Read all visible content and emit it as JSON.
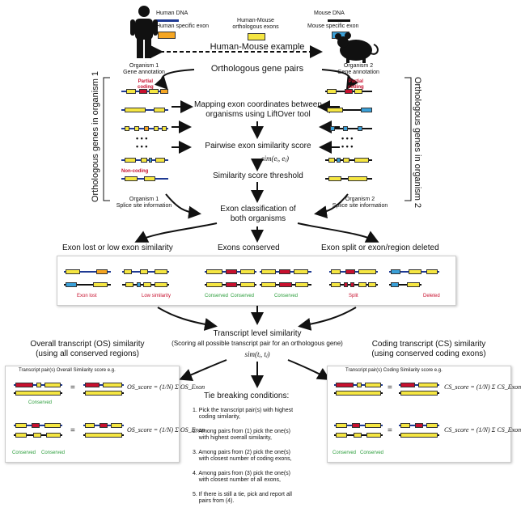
{
  "legend": {
    "human_dna": "Human DNA",
    "human_exon": "Human specific exon",
    "hm_exons": "Human-Mouse\northologous exons",
    "mouse_dna": "Mouse DNA",
    "mouse_exon": "Mouse specific exon",
    "example": "Human-Mouse example"
  },
  "organisms": {
    "org1": "Organism 1\nGene annotation",
    "org2": "Organism 2\nGene annotation",
    "org1_splice": "Organism 1\nSplice site information",
    "org2_splice": "Organism 2\nSplice site information",
    "orth_genes_1": "Orthologous genes in organism 1",
    "orth_genes_2": "Orthologous genes in organism 2"
  },
  "flow": {
    "orth_pairs": "Orthologous gene pairs",
    "mapping": "Mapping exon coordinates between\norganisms using LiftOver tool",
    "pairwise": "Pairwise exon similarity score",
    "sim_ej": "sim(eᵢ, eⱼ)",
    "threshold": "Similarity score threshold",
    "classification": "Exon classification of\nboth organisms"
  },
  "gene_labels": {
    "partial_coding": "Partial\ncoding",
    "non_coding": "Non-coding",
    "dots": "• • •"
  },
  "classes": {
    "lost": "Exon lost or low exon similarity",
    "conserved": "Exons conserved",
    "split": "Exon split or exon/region deleted",
    "exon_lost": "Exon lost",
    "low_similarity": "Low similarity",
    "conserved_lbl": "Conserved",
    "split_lbl": "Split",
    "deleted": "Deleted"
  },
  "transcript": {
    "title": "Transcript level similarity",
    "sub": "(Scoring all possible transcript pair for an orthologous gene)",
    "sim_t": "sim(tᵢ, tⱼ)",
    "os_title": "Overall transcript (OS) similarity\n(using all conserved regions)",
    "cs_title": "Coding transcript (CS) similarity\n(using conserved coding exons)",
    "os_panel": "Transcript pair(s) Overall Similarity score e.g.",
    "cs_panel": "Transcript pair(s) Coding Similarity score e.g.",
    "os_formula": "OS_score = (1/N) Σ OS_Exon",
    "cs_formula": "CS_score = (1/N) Σ CS_Exon",
    "eq": "="
  },
  "tie": {
    "title": "Tie breaking conditions:",
    "items": [
      "1. Pick the transcript pair(s) with highest\n    coding similarity,",
      "2. Among pairs from (1) pick the one(s)\n    with highest overall similarity,",
      "3. Among pairs from (2) pick the one(s)\n    with closest number of coding exons,",
      "4. Among pairs from (3) pick the one(s)\n    with closest number of all exons,",
      "5. If there is still a tie, pick and report all\n    pairs from (4)."
    ]
  },
  "colors": {
    "exon_yellow": "#f5e642",
    "exon_red": "#c8102e",
    "exon_blue": "#3aa0d8",
    "exon_orange": "#f5a623",
    "human_dna": "#1f3a93",
    "mouse_dna": "#111111"
  }
}
